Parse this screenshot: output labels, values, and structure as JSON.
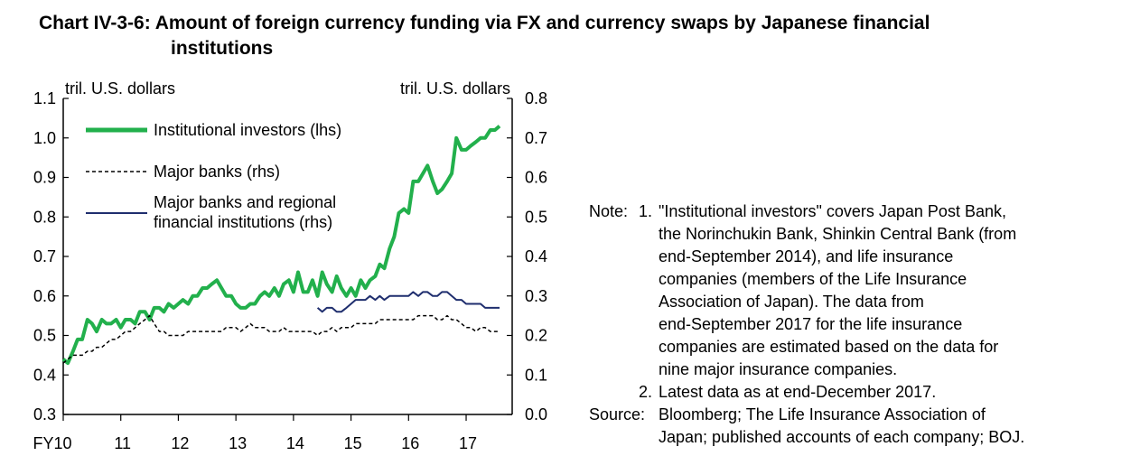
{
  "title_line1": "Chart IV-3-6: Amount of foreign currency funding via FX and currency swaps by Japanese financial",
  "title_line2": "institutions",
  "chart_data": {
    "type": "line",
    "x_ticks": [
      "FY10",
      "11",
      "12",
      "13",
      "14",
      "15",
      "16",
      "17"
    ],
    "x_range": [
      2010,
      2017.8
    ],
    "left_axis": {
      "label": "tril. U.S. dollars",
      "range": [
        0.3,
        1.1
      ],
      "ticks": [
        "0.3",
        "0.4",
        "0.5",
        "0.6",
        "0.7",
        "0.8",
        "0.9",
        "1.0",
        "1.1"
      ]
    },
    "right_axis": {
      "label": "tril. U.S. dollars",
      "range": [
        0.0,
        0.8
      ],
      "ticks": [
        "0.0",
        "0.1",
        "0.2",
        "0.3",
        "0.4",
        "0.5",
        "0.6",
        "0.7",
        "0.8"
      ]
    },
    "series": [
      {
        "name": "Institutional investors (lhs)",
        "axis": "left",
        "color": "#22b04c",
        "style": "solid",
        "points": [
          [
            2010.0,
            0.44
          ],
          [
            2010.08,
            0.43
          ],
          [
            2010.17,
            0.46
          ],
          [
            2010.25,
            0.49
          ],
          [
            2010.33,
            0.49
          ],
          [
            2010.42,
            0.54
          ],
          [
            2010.5,
            0.53
          ],
          [
            2010.58,
            0.51
          ],
          [
            2010.67,
            0.54
          ],
          [
            2010.75,
            0.53
          ],
          [
            2010.83,
            0.53
          ],
          [
            2010.92,
            0.54
          ],
          [
            2011.0,
            0.52
          ],
          [
            2011.08,
            0.54
          ],
          [
            2011.17,
            0.54
          ],
          [
            2011.25,
            0.53
          ],
          [
            2011.33,
            0.56
          ],
          [
            2011.42,
            0.56
          ],
          [
            2011.5,
            0.54
          ],
          [
            2011.58,
            0.57
          ],
          [
            2011.67,
            0.57
          ],
          [
            2011.75,
            0.56
          ],
          [
            2011.83,
            0.58
          ],
          [
            2011.92,
            0.57
          ],
          [
            2012.0,
            0.58
          ],
          [
            2012.08,
            0.59
          ],
          [
            2012.17,
            0.58
          ],
          [
            2012.25,
            0.6
          ],
          [
            2012.33,
            0.6
          ],
          [
            2012.42,
            0.62
          ],
          [
            2012.5,
            0.62
          ],
          [
            2012.58,
            0.63
          ],
          [
            2012.67,
            0.64
          ],
          [
            2012.75,
            0.62
          ],
          [
            2012.83,
            0.6
          ],
          [
            2012.92,
            0.6
          ],
          [
            2013.0,
            0.58
          ],
          [
            2013.08,
            0.57
          ],
          [
            2013.17,
            0.57
          ],
          [
            2013.25,
            0.58
          ],
          [
            2013.33,
            0.58
          ],
          [
            2013.42,
            0.6
          ],
          [
            2013.5,
            0.61
          ],
          [
            2013.58,
            0.6
          ],
          [
            2013.67,
            0.62
          ],
          [
            2013.75,
            0.6
          ],
          [
            2013.83,
            0.63
          ],
          [
            2013.92,
            0.64
          ],
          [
            2014.0,
            0.61
          ],
          [
            2014.08,
            0.66
          ],
          [
            2014.17,
            0.61
          ],
          [
            2014.25,
            0.61
          ],
          [
            2014.33,
            0.64
          ],
          [
            2014.42,
            0.6
          ],
          [
            2014.5,
            0.66
          ],
          [
            2014.58,
            0.63
          ],
          [
            2014.67,
            0.61
          ],
          [
            2014.75,
            0.65
          ],
          [
            2014.83,
            0.62
          ],
          [
            2014.92,
            0.6
          ],
          [
            2015.0,
            0.62
          ],
          [
            2015.08,
            0.6
          ],
          [
            2015.17,
            0.64
          ],
          [
            2015.25,
            0.62
          ],
          [
            2015.33,
            0.64
          ],
          [
            2015.42,
            0.65
          ],
          [
            2015.5,
            0.68
          ],
          [
            2015.58,
            0.67
          ],
          [
            2015.67,
            0.72
          ],
          [
            2015.75,
            0.75
          ],
          [
            2015.83,
            0.81
          ],
          [
            2015.92,
            0.82
          ],
          [
            2016.0,
            0.81
          ],
          [
            2016.08,
            0.89
          ],
          [
            2016.17,
            0.89
          ],
          [
            2016.25,
            0.91
          ],
          [
            2016.33,
            0.93
          ],
          [
            2016.42,
            0.89
          ],
          [
            2016.5,
            0.86
          ],
          [
            2016.58,
            0.87
          ],
          [
            2016.67,
            0.89
          ],
          [
            2016.75,
            0.91
          ],
          [
            2016.83,
            1.0
          ],
          [
            2016.92,
            0.97
          ],
          [
            2017.0,
            0.97
          ],
          [
            2017.08,
            0.98
          ],
          [
            2017.17,
            0.99
          ],
          [
            2017.25,
            1.0
          ],
          [
            2017.33,
            1.0
          ],
          [
            2017.42,
            1.02
          ],
          [
            2017.5,
            1.02
          ],
          [
            2017.58,
            1.03
          ]
        ]
      },
      {
        "name": "Major banks (rhs)",
        "axis": "right",
        "color": "#000000",
        "style": "dashed",
        "points": [
          [
            2010.0,
            0.13
          ],
          [
            2010.08,
            0.14
          ],
          [
            2010.17,
            0.15
          ],
          [
            2010.25,
            0.15
          ],
          [
            2010.33,
            0.15
          ],
          [
            2010.42,
            0.16
          ],
          [
            2010.5,
            0.16
          ],
          [
            2010.58,
            0.17
          ],
          [
            2010.67,
            0.17
          ],
          [
            2010.75,
            0.18
          ],
          [
            2010.83,
            0.19
          ],
          [
            2010.92,
            0.19
          ],
          [
            2011.0,
            0.2
          ],
          [
            2011.08,
            0.21
          ],
          [
            2011.17,
            0.21
          ],
          [
            2011.25,
            0.22
          ],
          [
            2011.33,
            0.23
          ],
          [
            2011.42,
            0.24
          ],
          [
            2011.5,
            0.25
          ],
          [
            2011.58,
            0.23
          ],
          [
            2011.67,
            0.21
          ],
          [
            2011.75,
            0.21
          ],
          [
            2011.83,
            0.2
          ],
          [
            2011.92,
            0.2
          ],
          [
            2012.0,
            0.2
          ],
          [
            2012.08,
            0.2
          ],
          [
            2012.17,
            0.21
          ],
          [
            2012.25,
            0.21
          ],
          [
            2012.33,
            0.21
          ],
          [
            2012.42,
            0.21
          ],
          [
            2012.5,
            0.21
          ],
          [
            2012.58,
            0.21
          ],
          [
            2012.67,
            0.21
          ],
          [
            2012.75,
            0.21
          ],
          [
            2012.83,
            0.22
          ],
          [
            2012.92,
            0.22
          ],
          [
            2013.0,
            0.22
          ],
          [
            2013.08,
            0.21
          ],
          [
            2013.17,
            0.22
          ],
          [
            2013.25,
            0.23
          ],
          [
            2013.33,
            0.22
          ],
          [
            2013.42,
            0.22
          ],
          [
            2013.5,
            0.22
          ],
          [
            2013.58,
            0.21
          ],
          [
            2013.67,
            0.21
          ],
          [
            2013.75,
            0.21
          ],
          [
            2013.83,
            0.22
          ],
          [
            2013.92,
            0.21
          ],
          [
            2014.0,
            0.21
          ],
          [
            2014.08,
            0.21
          ],
          [
            2014.17,
            0.21
          ],
          [
            2014.25,
            0.21
          ],
          [
            2014.33,
            0.21
          ],
          [
            2014.42,
            0.2
          ],
          [
            2014.5,
            0.21
          ],
          [
            2014.58,
            0.21
          ],
          [
            2014.67,
            0.22
          ],
          [
            2014.75,
            0.21
          ],
          [
            2014.83,
            0.22
          ],
          [
            2014.92,
            0.22
          ],
          [
            2015.0,
            0.22
          ],
          [
            2015.08,
            0.23
          ],
          [
            2015.17,
            0.23
          ],
          [
            2015.25,
            0.23
          ],
          [
            2015.33,
            0.23
          ],
          [
            2015.42,
            0.23
          ],
          [
            2015.5,
            0.24
          ],
          [
            2015.58,
            0.24
          ],
          [
            2015.67,
            0.24
          ],
          [
            2015.75,
            0.24
          ],
          [
            2015.83,
            0.24
          ],
          [
            2015.92,
            0.24
          ],
          [
            2016.0,
            0.24
          ],
          [
            2016.08,
            0.24
          ],
          [
            2016.17,
            0.25
          ],
          [
            2016.25,
            0.25
          ],
          [
            2016.33,
            0.25
          ],
          [
            2016.42,
            0.25
          ],
          [
            2016.5,
            0.24
          ],
          [
            2016.58,
            0.24
          ],
          [
            2016.67,
            0.25
          ],
          [
            2016.75,
            0.24
          ],
          [
            2016.83,
            0.24
          ],
          [
            2016.92,
            0.23
          ],
          [
            2017.0,
            0.22
          ],
          [
            2017.08,
            0.22
          ],
          [
            2017.17,
            0.21
          ],
          [
            2017.25,
            0.22
          ],
          [
            2017.33,
            0.22
          ],
          [
            2017.42,
            0.21
          ],
          [
            2017.5,
            0.21
          ],
          [
            2017.58,
            0.21
          ]
        ]
      },
      {
        "name": "Major banks and regional financial institutions (rhs)",
        "axis": "right",
        "color": "#1f2e6e",
        "style": "solid",
        "points": [
          [
            2014.42,
            0.27
          ],
          [
            2014.5,
            0.26
          ],
          [
            2014.58,
            0.27
          ],
          [
            2014.67,
            0.27
          ],
          [
            2014.75,
            0.26
          ],
          [
            2014.83,
            0.26
          ],
          [
            2014.92,
            0.27
          ],
          [
            2015.0,
            0.28
          ],
          [
            2015.08,
            0.29
          ],
          [
            2015.17,
            0.29
          ],
          [
            2015.25,
            0.29
          ],
          [
            2015.33,
            0.3
          ],
          [
            2015.42,
            0.29
          ],
          [
            2015.5,
            0.3
          ],
          [
            2015.58,
            0.29
          ],
          [
            2015.67,
            0.3
          ],
          [
            2015.75,
            0.3
          ],
          [
            2015.83,
            0.3
          ],
          [
            2015.92,
            0.3
          ],
          [
            2016.0,
            0.3
          ],
          [
            2016.08,
            0.31
          ],
          [
            2016.17,
            0.3
          ],
          [
            2016.25,
            0.31
          ],
          [
            2016.33,
            0.31
          ],
          [
            2016.42,
            0.3
          ],
          [
            2016.5,
            0.3
          ],
          [
            2016.58,
            0.31
          ],
          [
            2016.67,
            0.31
          ],
          [
            2016.75,
            0.3
          ],
          [
            2016.83,
            0.29
          ],
          [
            2016.92,
            0.29
          ],
          [
            2017.0,
            0.28
          ],
          [
            2017.08,
            0.28
          ],
          [
            2017.17,
            0.28
          ],
          [
            2017.25,
            0.28
          ],
          [
            2017.33,
            0.27
          ],
          [
            2017.42,
            0.27
          ],
          [
            2017.5,
            0.27
          ],
          [
            2017.58,
            0.27
          ]
        ]
      }
    ]
  },
  "legend": {
    "item1": "Institutional investors (lhs)",
    "item2": "Major banks (rhs)",
    "item3_line1": "Major banks and regional",
    "item3_line2": "financial institutions (rhs)"
  },
  "notes": {
    "note_label": "Note:",
    "note1_num": "1.",
    "note1_line1": "\"Institutional investors\" covers Japan Post Bank,",
    "note1_line2": "the Norinchukin Bank, Shinkin Central Bank (from",
    "note1_line3": "end-September 2014), and life insurance",
    "note1_line4": "companies (members of the Life Insurance",
    "note1_line5": "Association of Japan). The data from",
    "note1_line6": "end-September 2017 for the life insurance",
    "note1_line7": "companies are estimated based on the data for",
    "note1_line8": "nine major insurance companies.",
    "note2_num": "2.",
    "note2_text": "Latest data as at end-December 2017.",
    "source_label": "Source:",
    "source_line1": "Bloomberg; The Life Insurance Association of",
    "source_line2": "Japan; published accounts of each company; BOJ."
  }
}
